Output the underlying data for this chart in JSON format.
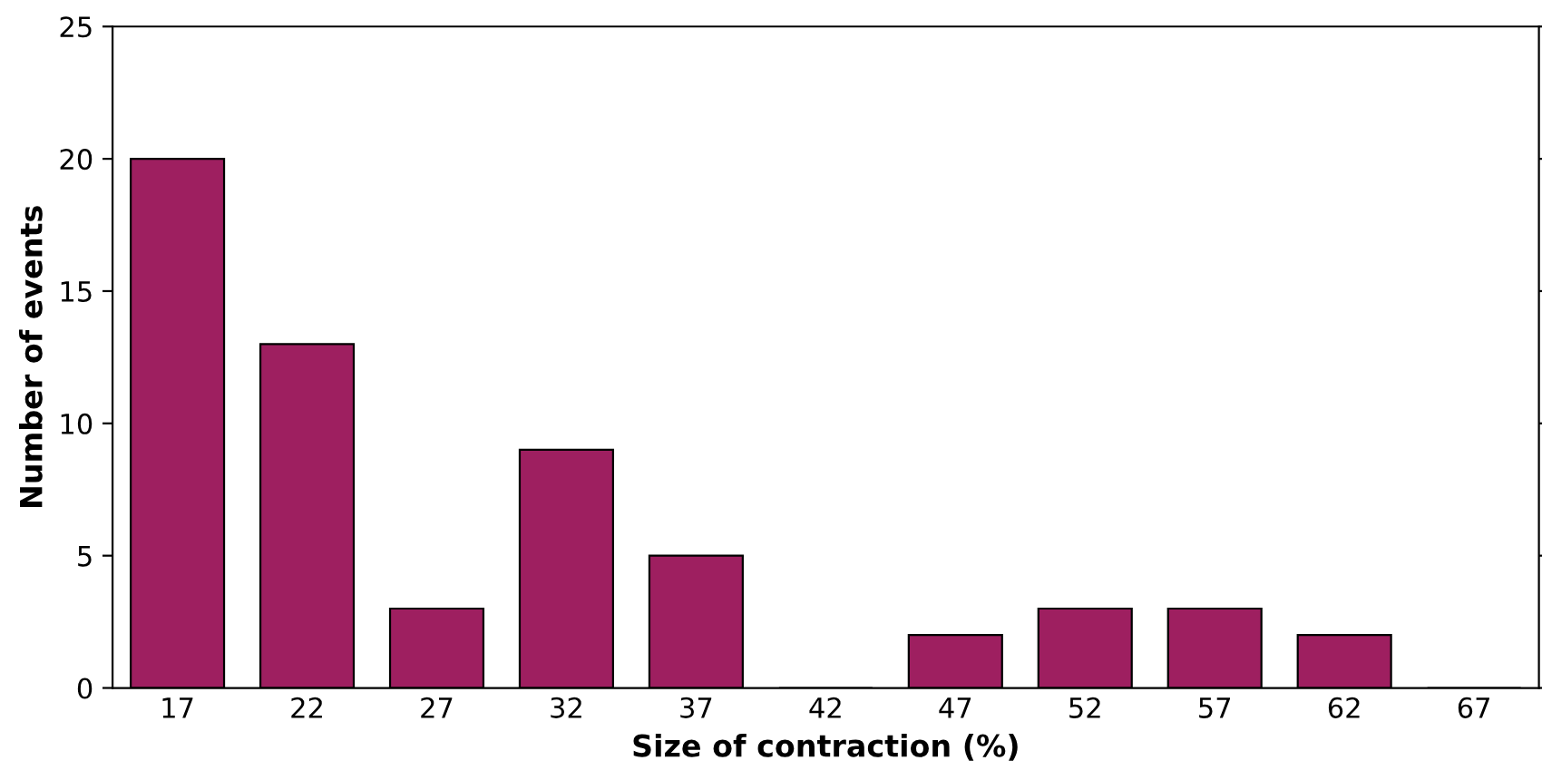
{
  "chart_data": {
    "type": "bar",
    "xlabel": "Size of contraction (%)",
    "ylabel": "Number of events",
    "categories": [
      "17",
      "22",
      "27",
      "32",
      "37",
      "42",
      "47",
      "52",
      "57",
      "62",
      "67"
    ],
    "values": [
      20,
      13,
      3,
      9,
      5,
      0,
      2,
      3,
      3,
      2,
      0
    ],
    "color": "#9e1f60",
    "ylim": [
      0,
      25
    ],
    "yticks": [
      0,
      5,
      10,
      15,
      20,
      25
    ],
    "grid": false,
    "legend": false
  }
}
